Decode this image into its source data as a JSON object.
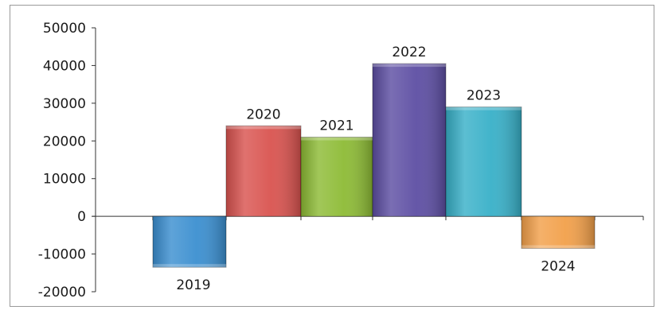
{
  "chart_data": {
    "type": "bar",
    "categories": [
      "2019",
      "2020",
      "2021",
      "2022",
      "2023",
      "2024"
    ],
    "values": [
      -13500,
      24000,
      21000,
      40500,
      29000,
      -8500
    ],
    "colors": [
      "#3b8fd0",
      "#d9534f",
      "#8dbb35",
      "#5d4ea3",
      "#38b0c8",
      "#f2a04a"
    ],
    "y_ticks": [
      "50000",
      "40000",
      "30000",
      "20000",
      "10000",
      "0",
      "-10000",
      "-20000"
    ],
    "ylim": [
      -20000,
      50000
    ],
    "grid": false,
    "legend": "none"
  }
}
